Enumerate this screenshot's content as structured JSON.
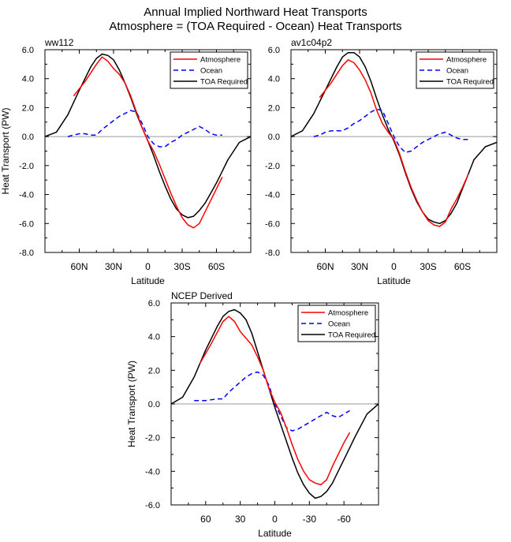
{
  "figure": {
    "title_line1": "Annual Implied Northward Heat Transports",
    "title_line2": "Atmosphere = (TOA Required - Ocean) Heat Transports"
  },
  "colors": {
    "atmosphere": "#ff0000",
    "ocean": "#0000ff",
    "toa": "#000000",
    "zero_line": "#999999"
  },
  "chart_data": [
    {
      "type": "line",
      "title": "ww112",
      "xlabel": "Latitude",
      "ylabel": "Heat Transport (PW)",
      "xlim": [
        90,
        -90
      ],
      "ylim": [
        -8,
        6
      ],
      "yticks": [
        6,
        4,
        2,
        0,
        -2,
        -4,
        -6,
        -8
      ],
      "ytick_labels": [
        "6.0",
        "4.0",
        "2.0",
        "0.0",
        "-2.0",
        "-4.0",
        "-6.0",
        "-8.0"
      ],
      "xticks": [
        60,
        30,
        0,
        -30,
        -60
      ],
      "xtick_labels": [
        "60N",
        "30N",
        "0",
        "30S",
        "60S"
      ],
      "legend_position": "top-right",
      "series": [
        {
          "name": "Atmosphere",
          "color": "#ff0000",
          "dash": "solid",
          "x": [
            65,
            55,
            45,
            40,
            35,
            30,
            25,
            20,
            15,
            10,
            5,
            0,
            -5,
            -10,
            -15,
            -20,
            -25,
            -30,
            -35,
            -40,
            -45,
            -50,
            -55,
            -60,
            -65
          ],
          "y": [
            2.8,
            3.8,
            5.0,
            5.5,
            5.2,
            4.7,
            4.3,
            3.7,
            2.8,
            1.7,
            0.6,
            -0.3,
            -1.0,
            -1.9,
            -2.9,
            -3.9,
            -4.8,
            -5.6,
            -6.1,
            -6.3,
            -6.0,
            -5.2,
            -4.4,
            -3.6,
            -2.8
          ]
        },
        {
          "name": "Ocean",
          "color": "#0000ff",
          "dash": "dashed",
          "x": [
            70,
            65,
            60,
            55,
            50,
            45,
            40,
            35,
            30,
            25,
            20,
            15,
            10,
            5,
            0,
            -5,
            -10,
            -15,
            -20,
            -25,
            -30,
            -35,
            -40,
            -45,
            -50,
            -55,
            -60,
            -65
          ],
          "y": [
            0.0,
            0.1,
            0.2,
            0.2,
            0.1,
            0.1,
            0.5,
            0.8,
            1.1,
            1.4,
            1.6,
            1.8,
            1.7,
            0.9,
            0.0,
            -0.5,
            -0.7,
            -0.7,
            -0.4,
            -0.2,
            0.1,
            0.3,
            0.5,
            0.7,
            0.5,
            0.2,
            0.1,
            0.1
          ]
        },
        {
          "name": "TOA Required",
          "color": "#000000",
          "dash": "solid",
          "x": [
            90,
            80,
            70,
            60,
            50,
            45,
            40,
            35,
            30,
            25,
            20,
            15,
            10,
            5,
            0,
            -5,
            -10,
            -15,
            -20,
            -25,
            -30,
            -35,
            -40,
            -45,
            -50,
            -55,
            -60,
            -65,
            -70,
            -80,
            -90
          ],
          "y": [
            0.0,
            0.3,
            1.5,
            3.2,
            4.8,
            5.4,
            5.7,
            5.6,
            5.3,
            4.6,
            3.7,
            2.7,
            1.6,
            0.6,
            -0.3,
            -1.3,
            -2.4,
            -3.4,
            -4.3,
            -5.0,
            -5.4,
            -5.6,
            -5.5,
            -5.1,
            -4.6,
            -3.9,
            -3.2,
            -2.4,
            -1.6,
            -0.4,
            0.0
          ]
        }
      ]
    },
    {
      "type": "line",
      "title": "av1c04p2",
      "xlabel": "Latitude",
      "ylabel": "",
      "xlim": [
        90,
        -90
      ],
      "ylim": [
        -8,
        6
      ],
      "yticks": [
        6,
        4,
        2,
        0,
        -2,
        -4,
        -6,
        -8
      ],
      "ytick_labels": [
        "6.0",
        "4.0",
        "2.0",
        "0.0",
        "-2.0",
        "-4.0",
        "-6.0",
        "-8.0"
      ],
      "xticks": [
        60,
        30,
        0,
        -30,
        -60
      ],
      "xtick_labels": [
        "60N",
        "30N",
        "0",
        "30S",
        "60S"
      ],
      "legend_position": "top-right",
      "series": [
        {
          "name": "Atmosphere",
          "color": "#ff0000",
          "dash": "solid",
          "x": [
            65,
            55,
            45,
            40,
            35,
            30,
            25,
            20,
            15,
            10,
            5,
            0,
            -5,
            -10,
            -15,
            -20,
            -25,
            -30,
            -35,
            -40,
            -45,
            -50,
            -55,
            -60,
            -65
          ],
          "y": [
            2.7,
            3.7,
            4.9,
            5.3,
            5.1,
            4.6,
            3.9,
            3.0,
            1.8,
            0.9,
            0.3,
            -0.2,
            -1.2,
            -2.4,
            -3.5,
            -4.4,
            -5.2,
            -5.8,
            -6.1,
            -6.2,
            -5.9,
            -5.0,
            -4.3,
            -3.5,
            -2.6
          ]
        },
        {
          "name": "Ocean",
          "color": "#0000ff",
          "dash": "dashed",
          "x": [
            70,
            65,
            60,
            55,
            50,
            45,
            40,
            35,
            30,
            25,
            20,
            15,
            10,
            5,
            0,
            -5,
            -10,
            -15,
            -20,
            -25,
            -30,
            -35,
            -40,
            -45,
            -50,
            -55,
            -60,
            -65
          ],
          "y": [
            0.0,
            0.1,
            0.3,
            0.4,
            0.4,
            0.4,
            0.6,
            0.9,
            1.1,
            1.4,
            1.7,
            1.9,
            1.8,
            0.9,
            0.0,
            -0.7,
            -1.1,
            -1.0,
            -0.7,
            -0.4,
            -0.2,
            0.0,
            0.2,
            0.3,
            0.1,
            -0.1,
            -0.2,
            -0.2
          ]
        },
        {
          "name": "TOA Required",
          "color": "#000000",
          "dash": "solid",
          "x": [
            90,
            80,
            70,
            60,
            50,
            45,
            40,
            35,
            30,
            25,
            20,
            15,
            10,
            5,
            0,
            -5,
            -10,
            -15,
            -20,
            -25,
            -30,
            -35,
            -40,
            -45,
            -50,
            -55,
            -60,
            -65,
            -70,
            -80,
            -90
          ],
          "y": [
            0.0,
            0.4,
            1.6,
            3.2,
            4.8,
            5.5,
            5.8,
            5.8,
            5.5,
            4.8,
            3.8,
            2.6,
            1.5,
            0.5,
            -0.3,
            -1.3,
            -2.5,
            -3.6,
            -4.5,
            -5.2,
            -5.7,
            -5.9,
            -6.0,
            -5.8,
            -5.3,
            -4.6,
            -3.6,
            -2.6,
            -1.6,
            -0.7,
            -0.4
          ]
        }
      ]
    },
    {
      "type": "line",
      "title": "NCEP Derived",
      "xlabel": "Latitude",
      "ylabel": "Heat Transport (PW)",
      "xlim": [
        90,
        -90
      ],
      "ylim": [
        -6,
        6
      ],
      "yticks": [
        6,
        4,
        2,
        0,
        -2,
        -4,
        -6
      ],
      "ytick_labels": [
        "6.0",
        "4.0",
        "2.0",
        "0.0",
        "-2.0",
        "-4.0",
        "-6.0"
      ],
      "xticks": [
        60,
        30,
        0,
        -30,
        -60
      ],
      "xtick_labels": [
        "60",
        "30",
        "0",
        "-30",
        "-60"
      ],
      "legend_position": "top-right",
      "series": [
        {
          "name": "Atmosphere",
          "color": "#ff0000",
          "dash": "solid",
          "x": [
            65,
            55,
            45,
            40,
            35,
            30,
            25,
            20,
            15,
            10,
            5,
            0,
            -5,
            -10,
            -15,
            -20,
            -25,
            -30,
            -35,
            -40,
            -45,
            -50,
            -55,
            -60,
            -65
          ],
          "y": [
            2.4,
            3.6,
            4.9,
            5.2,
            4.9,
            4.3,
            3.9,
            3.5,
            2.8,
            2.0,
            0.9,
            0.1,
            -0.5,
            -1.4,
            -2.4,
            -3.3,
            -4.0,
            -4.5,
            -4.7,
            -4.8,
            -4.5,
            -3.7,
            -3.0,
            -2.3,
            -1.7
          ]
        },
        {
          "name": "Ocean",
          "color": "#0000ff",
          "dash": "dashed",
          "x": [
            70,
            60,
            50,
            45,
            40,
            35,
            30,
            25,
            20,
            15,
            10,
            5,
            0,
            -5,
            -10,
            -15,
            -20,
            -25,
            -30,
            -35,
            -40,
            -45,
            -50,
            -55,
            -60,
            -65
          ],
          "y": [
            0.2,
            0.2,
            0.3,
            0.3,
            0.7,
            1.0,
            1.3,
            1.6,
            1.8,
            1.9,
            1.7,
            1.1,
            0.0,
            -0.7,
            -1.4,
            -1.6,
            -1.5,
            -1.3,
            -1.1,
            -0.9,
            -0.7,
            -0.5,
            -0.7,
            -0.8,
            -0.6,
            -0.4
          ]
        },
        {
          "name": "TOA Required",
          "color": "#000000",
          "dash": "solid",
          "x": [
            90,
            80,
            70,
            60,
            50,
            45,
            40,
            35,
            30,
            25,
            20,
            15,
            10,
            5,
            0,
            -5,
            -10,
            -15,
            -20,
            -25,
            -30,
            -35,
            -40,
            -45,
            -50,
            -55,
            -60,
            -70,
            -80,
            -90
          ],
          "y": [
            0.0,
            0.4,
            1.6,
            3.2,
            4.6,
            5.2,
            5.5,
            5.6,
            5.4,
            5.0,
            4.2,
            3.1,
            2.0,
            0.9,
            -0.2,
            -1.2,
            -2.2,
            -3.2,
            -4.1,
            -4.8,
            -5.3,
            -5.6,
            -5.5,
            -5.2,
            -4.7,
            -4.0,
            -3.3,
            -1.9,
            -0.6,
            0.0
          ]
        }
      ]
    }
  ]
}
